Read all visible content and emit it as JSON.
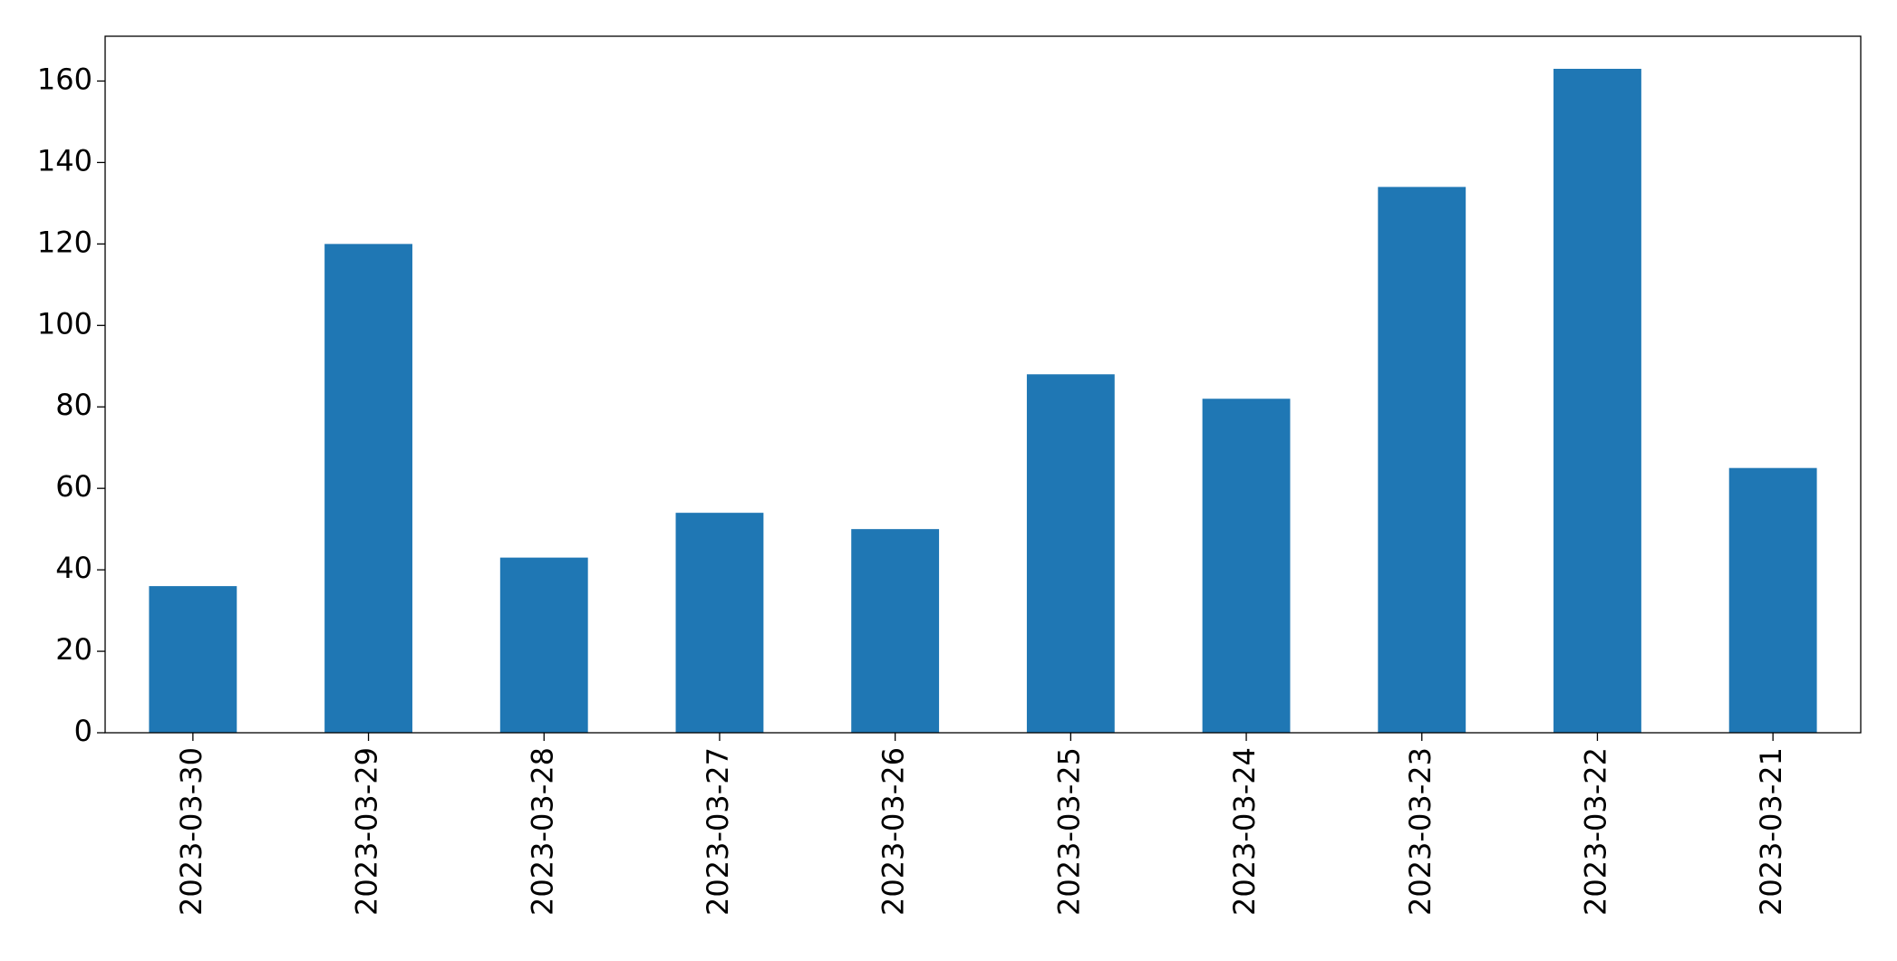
{
  "chart_data": {
    "type": "bar",
    "categories": [
      "2023-03-30",
      "2023-03-29",
      "2023-03-28",
      "2023-03-27",
      "2023-03-26",
      "2023-03-25",
      "2023-03-24",
      "2023-03-23",
      "2023-03-22",
      "2023-03-21"
    ],
    "values": [
      36,
      120,
      43,
      54,
      50,
      88,
      82,
      134,
      163,
      65
    ],
    "color": "#1f77b4",
    "ylim": [
      0,
      171
    ],
    "yticks": [
      0,
      20,
      40,
      60,
      80,
      100,
      120,
      140,
      160
    ],
    "grid": false
  }
}
